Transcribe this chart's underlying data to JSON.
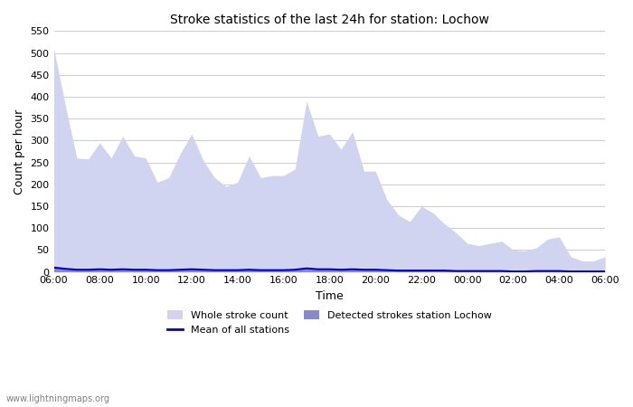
{
  "title": "Stroke statistics of the last 24h for station: Lochow",
  "xlabel": "Time",
  "ylabel": "Count per hour",
  "ylim": [
    0,
    550
  ],
  "yticks": [
    0,
    50,
    100,
    150,
    200,
    250,
    300,
    350,
    400,
    450,
    500,
    550
  ],
  "xtick_labels": [
    "06:00",
    "08:00",
    "10:00",
    "12:00",
    "14:00",
    "16:00",
    "18:00",
    "20:00",
    "22:00",
    "00:00",
    "02:00",
    "04:00",
    "06:00"
  ],
  "whole_stroke_color": "#d0d4f0",
  "detected_stroke_color": "#8888cc",
  "mean_line_color": "#0000cc",
  "background_color": "#ffffff",
  "grid_color": "#cccccc",
  "watermark": "www.lightningmaps.org",
  "legend_labels": [
    "Whole stroke count",
    "Detected strokes station Lochow",
    "Mean of all stations"
  ],
  "time_hours": [
    6,
    6.5,
    7,
    7.5,
    8,
    8.5,
    9,
    9.5,
    10,
    10.5,
    11,
    11.5,
    12,
    12.5,
    13,
    13.5,
    14,
    14.5,
    15,
    15.5,
    16,
    16.5,
    17,
    17.5,
    18,
    18.5,
    19,
    19.5,
    20,
    20.5,
    21,
    21.5,
    22,
    22.5,
    23,
    23.5,
    24,
    24.5,
    25,
    25.5,
    26,
    26.5,
    27,
    27.5,
    28,
    28.5,
    29,
    29.5,
    30
  ],
  "whole_stroke_values": [
    510,
    380,
    260,
    258,
    295,
    260,
    310,
    265,
    260,
    205,
    215,
    270,
    315,
    255,
    215,
    195,
    205,
    265,
    215,
    220,
    220,
    235,
    390,
    310,
    315,
    280,
    320,
    230,
    230,
    165,
    130,
    115,
    150,
    135,
    110,
    90,
    65,
    60,
    65,
    70,
    50,
    48,
    55,
    75,
    80,
    35,
    25,
    25,
    35
  ],
  "detected_stroke_values": [
    10,
    7,
    5,
    5,
    6,
    5,
    6,
    5,
    5,
    4,
    4,
    5,
    6,
    5,
    4,
    4,
    4,
    5,
    4,
    4,
    4,
    5,
    8,
    6,
    6,
    5,
    6,
    5,
    5,
    4,
    3,
    3,
    3,
    3,
    3,
    2,
    2,
    2,
    2,
    2,
    1,
    1,
    2,
    2,
    2,
    1,
    1,
    1,
    1
  ],
  "mean_line_values": [
    10,
    7,
    5,
    5,
    6,
    5,
    6,
    5,
    5,
    4,
    4,
    5,
    6,
    5,
    4,
    4,
    4,
    5,
    4,
    4,
    4,
    5,
    8,
    6,
    6,
    5,
    6,
    5,
    5,
    4,
    3,
    3,
    3,
    3,
    3,
    2,
    2,
    2,
    2,
    2,
    1,
    1,
    2,
    2,
    2,
    1,
    1,
    1,
    1
  ]
}
